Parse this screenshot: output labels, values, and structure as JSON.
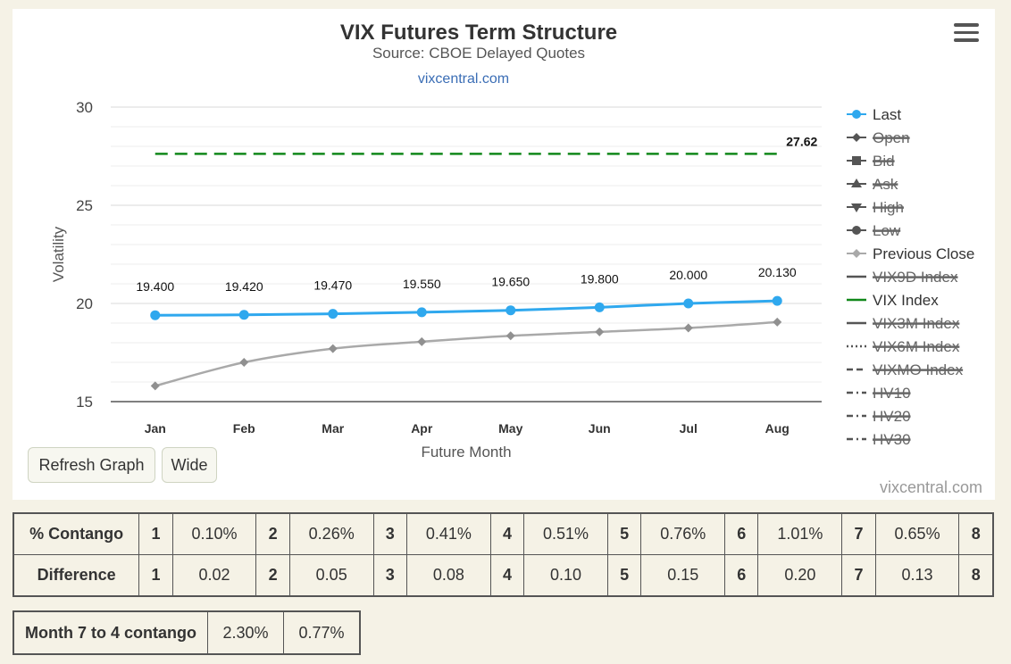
{
  "chart_data": {
    "type": "line",
    "title": "VIX Futures Term Structure",
    "subtitle": "Source: CBOE Delayed Quotes",
    "subtitle2": "vixcentral.com",
    "credits": "vixcentral.com",
    "xlabel": "Future Month",
    "ylabel": "Volatility",
    "ylim": [
      15,
      30
    ],
    "yticks": [
      15,
      20,
      25,
      30
    ],
    "categories": [
      "Jan",
      "Feb",
      "Mar",
      "Apr",
      "May",
      "Jun",
      "Jul",
      "Aug"
    ],
    "series": [
      {
        "name": "Last",
        "color": "#2fa8ee",
        "values": [
          19.4,
          19.42,
          19.47,
          19.55,
          19.65,
          19.8,
          20.0,
          20.13
        ],
        "labels": [
          "19.400",
          "19.420",
          "19.470",
          "19.550",
          "19.650",
          "19.800",
          "20.000",
          "20.130"
        ]
      },
      {
        "name": "Previous Close",
        "color": "#a9a9a9",
        "values": [
          15.8,
          17.0,
          17.7,
          18.05,
          18.35,
          18.55,
          18.75,
          19.05
        ]
      },
      {
        "name": "VIX Index",
        "color": "#11881a",
        "values": [
          27.62,
          27.62,
          27.62,
          27.62,
          27.62,
          27.62,
          27.62,
          27.62
        ],
        "end_label": "27.62"
      }
    ],
    "legend": {
      "position": "right",
      "items": [
        {
          "name": "Last",
          "symbol": "circle",
          "color": "#2fa8ee",
          "hidden": false
        },
        {
          "name": "Open",
          "symbol": "diamond",
          "color": "#555555",
          "hidden": true
        },
        {
          "name": "Bid",
          "symbol": "square",
          "color": "#555555",
          "hidden": true
        },
        {
          "name": "Ask",
          "symbol": "triangle",
          "color": "#555555",
          "hidden": true
        },
        {
          "name": "High",
          "symbol": "triangle-down",
          "color": "#555555",
          "hidden": true
        },
        {
          "name": "Low",
          "symbol": "circle",
          "color": "#555555",
          "hidden": true
        },
        {
          "name": "Previous Close",
          "symbol": "diamond",
          "color": "#a9a9a9",
          "hidden": false
        },
        {
          "name": "VIX9D Index",
          "symbol": "solid",
          "color": "#555555",
          "hidden": true
        },
        {
          "name": "VIX Index",
          "symbol": "solid",
          "color": "#11881a",
          "hidden": false
        },
        {
          "name": "VIX3M Index",
          "symbol": "solid",
          "color": "#555555",
          "hidden": true
        },
        {
          "name": "VIX6M Index",
          "symbol": "dot",
          "color": "#555555",
          "hidden": true
        },
        {
          "name": "VIXMO Index",
          "symbol": "dash",
          "color": "#555555",
          "hidden": true
        },
        {
          "name": "HV10",
          "symbol": "dashdot",
          "color": "#555555",
          "hidden": true
        },
        {
          "name": "HV20",
          "symbol": "dashdot",
          "color": "#555555",
          "hidden": true
        },
        {
          "name": "HV30",
          "symbol": "dashdot",
          "color": "#555555",
          "hidden": true
        }
      ]
    },
    "grid": true
  },
  "buttons": {
    "refresh": "Refresh Graph",
    "wide": "Wide"
  },
  "menu_icon": "hamburger-menu-icon",
  "contango_table": {
    "row1_label": "% Contango",
    "row2_label": "Difference",
    "indices": [
      "1",
      "2",
      "3",
      "4",
      "5",
      "6",
      "7",
      "8"
    ],
    "contango": [
      "0.10%",
      "0.26%",
      "0.41%",
      "0.51%",
      "0.76%",
      "1.01%",
      "0.65%"
    ],
    "difference": [
      "0.02",
      "0.05",
      "0.08",
      "0.10",
      "0.15",
      "0.20",
      "0.13"
    ]
  },
  "month_table": {
    "label": "Month 7 to 4 contango",
    "values": [
      "2.30%",
      "0.77%"
    ]
  }
}
